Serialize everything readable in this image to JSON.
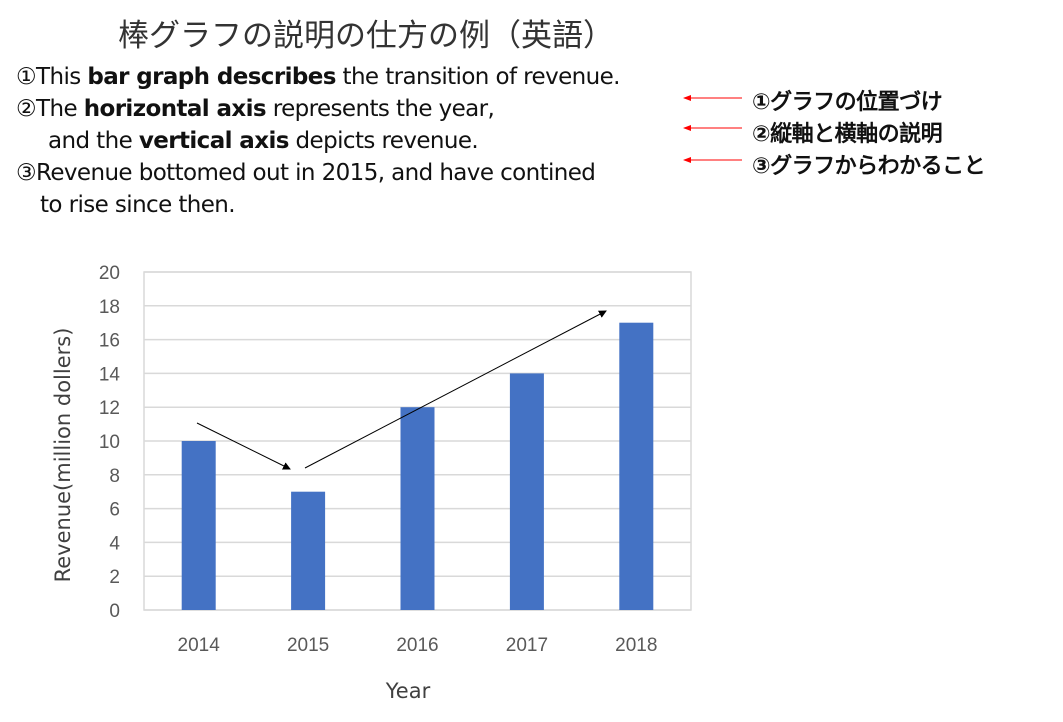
{
  "title": "棒グラフの説明の仕方の例（英語）",
  "explanation": {
    "line1": {
      "pre": "①This ",
      "bold": "bar graph describes",
      "post": " the transition of revenue."
    },
    "line2": {
      "pre": "②The ",
      "bold": "horizontal axis",
      "post": " represents the year,"
    },
    "line3": {
      "pre": "and the ",
      "bold": "vertical axis",
      "post": " depicts revenue."
    },
    "line4": {
      "pre": "③Revenue bottomed out in 2015, and have contined",
      "bold": "",
      "post": ""
    },
    "line5": {
      "pre": "to rise since then.",
      "bold": "",
      "post": ""
    }
  },
  "notes": [
    "①グラフの位置づけ",
    "②縦軸と横軸の説明",
    "③グラフからわかること"
  ],
  "colors": {
    "bar": "#4472C4",
    "note_arrow": "#FF0000",
    "grid": "#D9D9D9"
  },
  "chart_data": {
    "type": "bar",
    "categories": [
      "2014",
      "2015",
      "2016",
      "2017",
      "2018"
    ],
    "values": [
      10,
      7,
      12,
      14,
      17
    ],
    "title": "",
    "xlabel": "Year",
    "ylabel": "Revenue(million dollers)",
    "ylim": [
      0,
      20
    ],
    "yticks": [
      0,
      2,
      4,
      6,
      8,
      10,
      12,
      14,
      16,
      18,
      20
    ],
    "grid": true,
    "annotations": [
      {
        "type": "arrow",
        "description": "downward trend from 2014 to 2015"
      },
      {
        "type": "arrow",
        "description": "upward trend from 2015 to 2018"
      }
    ]
  }
}
